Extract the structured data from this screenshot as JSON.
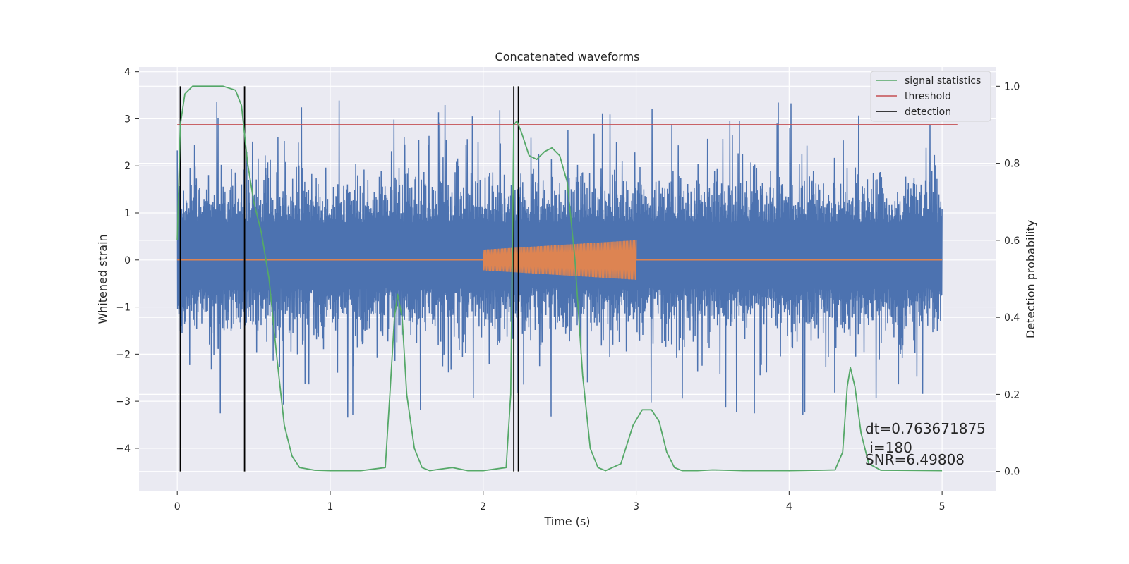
{
  "chart_data": {
    "type": "line",
    "title": "Concatenated waveforms",
    "xlabel": "Time (s)",
    "ylabel_left": "Whitened strain",
    "ylabel_right": "Detection probability",
    "xlim": [
      -0.25,
      5.35
    ],
    "ylim_left": [
      -4.9,
      4.1
    ],
    "ylim_right": [
      -0.05,
      1.05
    ],
    "xticks": [
      0,
      1,
      2,
      3,
      4,
      5
    ],
    "yticks_left": [
      -4,
      -3,
      -2,
      -1,
      0,
      1,
      2,
      3,
      4
    ],
    "yticks_right": [
      0.0,
      0.2,
      0.4,
      0.6,
      0.8,
      1.0
    ],
    "grid": true,
    "legend_position": "top-right",
    "legend": [
      {
        "name": "signal statistics",
        "color": "#55a868"
      },
      {
        "name": "threshold",
        "color": "#c44e52"
      },
      {
        "name": "detection",
        "color": "#000000"
      }
    ],
    "noise": {
      "color": "#4c72b0",
      "x_range": [
        0,
        5
      ],
      "typical_envelope": [
        -1.2,
        1.4
      ],
      "peak_min": -3.4,
      "peak_max": 3.4
    },
    "injected_signal": {
      "color": "#dd8452",
      "x_start": 2.0,
      "x_end": 3.0,
      "amp_start": 0.22,
      "amp_end": 0.42
    },
    "threshold": {
      "value": 0.9,
      "x_range": [
        0,
        5.1
      ]
    },
    "detections": [
      0.02,
      0.44,
      2.2,
      2.23
    ],
    "signal_statistics": {
      "x": [
        0,
        0.02,
        0.05,
        0.1,
        0.2,
        0.3,
        0.38,
        0.42,
        0.46,
        0.5,
        0.55,
        0.6,
        0.65,
        0.7,
        0.75,
        0.8,
        0.9,
        1.0,
        1.2,
        1.36,
        1.39,
        1.42,
        1.44,
        1.47,
        1.5,
        1.55,
        1.6,
        1.65,
        1.7,
        1.8,
        1.9,
        2.0,
        2.15,
        2.18,
        2.2,
        2.22,
        2.25,
        2.3,
        2.35,
        2.4,
        2.45,
        2.5,
        2.55,
        2.6,
        2.65,
        2.7,
        2.75,
        2.8,
        2.9,
        2.98,
        3.04,
        3.1,
        3.15,
        3.2,
        3.25,
        3.3,
        3.4,
        3.5,
        3.7,
        4.0,
        4.2,
        4.3,
        4.35,
        4.38,
        4.4,
        4.43,
        4.47,
        4.52,
        4.6,
        5.0
      ],
      "y": [
        0.6,
        0.9,
        0.98,
        1.0,
        1.0,
        1.0,
        0.99,
        0.95,
        0.8,
        0.7,
        0.62,
        0.5,
        0.3,
        0.12,
        0.04,
        0.01,
        0.003,
        0.002,
        0.002,
        0.01,
        0.2,
        0.4,
        0.46,
        0.4,
        0.2,
        0.06,
        0.01,
        0.002,
        0.005,
        0.01,
        0.002,
        0.002,
        0.01,
        0.2,
        0.9,
        0.91,
        0.88,
        0.82,
        0.81,
        0.83,
        0.84,
        0.82,
        0.75,
        0.55,
        0.25,
        0.06,
        0.01,
        0.002,
        0.02,
        0.12,
        0.16,
        0.16,
        0.13,
        0.05,
        0.01,
        0.002,
        0.002,
        0.004,
        0.002,
        0.002,
        0.003,
        0.004,
        0.05,
        0.22,
        0.27,
        0.22,
        0.1,
        0.02,
        0.003,
        0.002
      ]
    },
    "annotations": [
      "dt=0.763671875",
      " i=180",
      "SNR=6.49808"
    ]
  }
}
